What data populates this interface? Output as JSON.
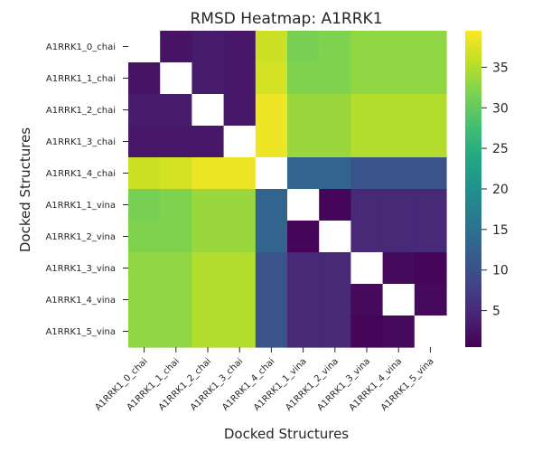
{
  "chart_data": {
    "type": "heatmap",
    "title": "RMSD Heatmap: A1RRK1",
    "xlabel": "Docked Structures",
    "ylabel": "Docked Structures",
    "labels": [
      "A1RRK1_0_chai",
      "A1RRK1_1_chai",
      "A1RRK1_2_chai",
      "A1RRK1_3_chai",
      "A1RRK1_4_chai",
      "A1RRK1_1_vina",
      "A1RRK1_2_vina",
      "A1RRK1_3_vina",
      "A1RRK1_4_vina",
      "A1RRK1_5_vina"
    ],
    "values": [
      [
        null,
        2.5,
        3.5,
        3.0,
        36.5,
        31.5,
        32.0,
        33.0,
        33.0,
        33.0
      ],
      [
        2.5,
        null,
        3.5,
        3.0,
        37.0,
        32.0,
        32.0,
        33.0,
        33.0,
        33.0
      ],
      [
        3.5,
        3.5,
        null,
        3.0,
        38.5,
        33.5,
        33.5,
        35.0,
        35.0,
        35.0
      ],
      [
        3.0,
        3.0,
        3.0,
        null,
        38.5,
        33.5,
        33.5,
        35.0,
        35.0,
        35.0
      ],
      [
        36.5,
        37.0,
        38.5,
        38.5,
        null,
        13.0,
        13.0,
        10.5,
        10.5,
        10.5
      ],
      [
        31.5,
        32.0,
        33.5,
        33.5,
        13.0,
        null,
        1.0,
        5.0,
        5.0,
        5.0
      ],
      [
        32.0,
        32.0,
        33.5,
        33.5,
        13.0,
        1.0,
        null,
        5.0,
        5.0,
        5.0
      ],
      [
        33.0,
        33.0,
        35.0,
        35.0,
        10.5,
        5.0,
        5.0,
        null,
        1.5,
        1.0
      ],
      [
        33.0,
        33.0,
        35.0,
        35.0,
        10.5,
        5.0,
        5.0,
        1.5,
        null,
        1.5
      ],
      [
        33.0,
        33.0,
        35.0,
        35.0,
        10.5,
        5.0,
        5.0,
        1.0,
        1.5,
        null
      ]
    ],
    "vmin": 0.5,
    "vmax": 39.5,
    "colormap": "viridis",
    "colorbar_ticks": [
      5,
      10,
      15,
      20,
      25,
      30,
      35
    ],
    "grid": false
  }
}
